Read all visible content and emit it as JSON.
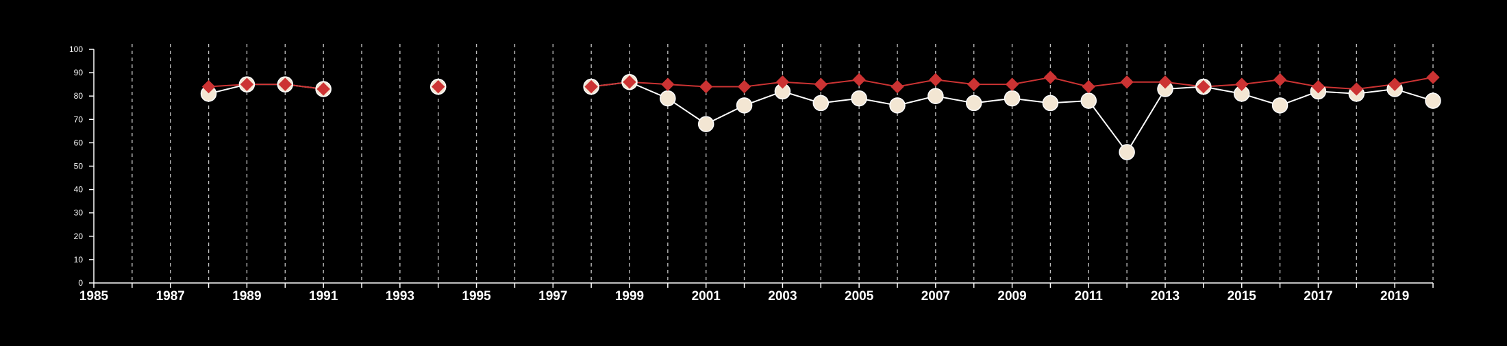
{
  "colors": {
    "background": "#000000",
    "axis": "#ffffff",
    "grid": "#bbbbbb",
    "series_white": "#f3e6d3",
    "series_red": "#cc3333"
  },
  "chart_data": {
    "type": "line",
    "title": "",
    "xlabel": "",
    "ylabel": "",
    "xlim": [
      1985,
      2020
    ],
    "ylim": [
      0,
      100
    ],
    "yticks": [
      0,
      10,
      20,
      30,
      40,
      50,
      60,
      70,
      80,
      90,
      100
    ],
    "xticks_labeled": [
      1985,
      1987,
      1989,
      1991,
      1993,
      1995,
      1997,
      1999,
      2001,
      2003,
      2005,
      2007,
      2009,
      2011,
      2013,
      2015,
      2017,
      2019
    ],
    "grid": "vertical dashed at every year",
    "legend": "none",
    "series": [
      {
        "marker": "circle",
        "color": "#f3e6d3",
        "points": [
          [
            1988,
            81
          ],
          [
            1989,
            85
          ],
          [
            1990,
            85
          ],
          [
            1991,
            83
          ],
          [
            1994,
            84
          ],
          [
            1998,
            84
          ],
          [
            1999,
            86
          ],
          [
            2000,
            79
          ],
          [
            2001,
            68
          ],
          [
            2002,
            76
          ],
          [
            2003,
            82
          ],
          [
            2004,
            77
          ],
          [
            2005,
            79
          ],
          [
            2006,
            76
          ],
          [
            2007,
            80
          ],
          [
            2008,
            77
          ],
          [
            2009,
            79
          ],
          [
            2010,
            77
          ],
          [
            2011,
            78
          ],
          [
            2012,
            56
          ],
          [
            2013,
            83
          ],
          [
            2014,
            84
          ],
          [
            2015,
            81
          ],
          [
            2016,
            76
          ],
          [
            2017,
            82
          ],
          [
            2018,
            81
          ],
          [
            2019,
            83
          ],
          [
            2020,
            78
          ]
        ],
        "segments": [
          [
            1988,
            1991
          ],
          [
            1994,
            1994
          ],
          [
            1998,
            2020
          ]
        ]
      },
      {
        "marker": "diamond",
        "color": "#cc3333",
        "points": [
          [
            1988,
            84
          ],
          [
            1989,
            85
          ],
          [
            1990,
            85
          ],
          [
            1991,
            83
          ],
          [
            1994,
            84
          ],
          [
            1998,
            84
          ],
          [
            1999,
            86
          ],
          [
            2000,
            85
          ],
          [
            2001,
            84
          ],
          [
            2002,
            84
          ],
          [
            2003,
            86
          ],
          [
            2004,
            85
          ],
          [
            2005,
            87
          ],
          [
            2006,
            84
          ],
          [
            2007,
            87
          ],
          [
            2008,
            85
          ],
          [
            2009,
            85
          ],
          [
            2010,
            88
          ],
          [
            2011,
            84
          ],
          [
            2012,
            86
          ],
          [
            2013,
            86
          ],
          [
            2014,
            84
          ],
          [
            2015,
            85
          ],
          [
            2016,
            87
          ],
          [
            2017,
            84
          ],
          [
            2018,
            83
          ],
          [
            2019,
            85
          ],
          [
            2020,
            88
          ]
        ],
        "segments": [
          [
            1988,
            1991
          ],
          [
            1994,
            1994
          ],
          [
            1998,
            2020
          ]
        ]
      }
    ]
  }
}
